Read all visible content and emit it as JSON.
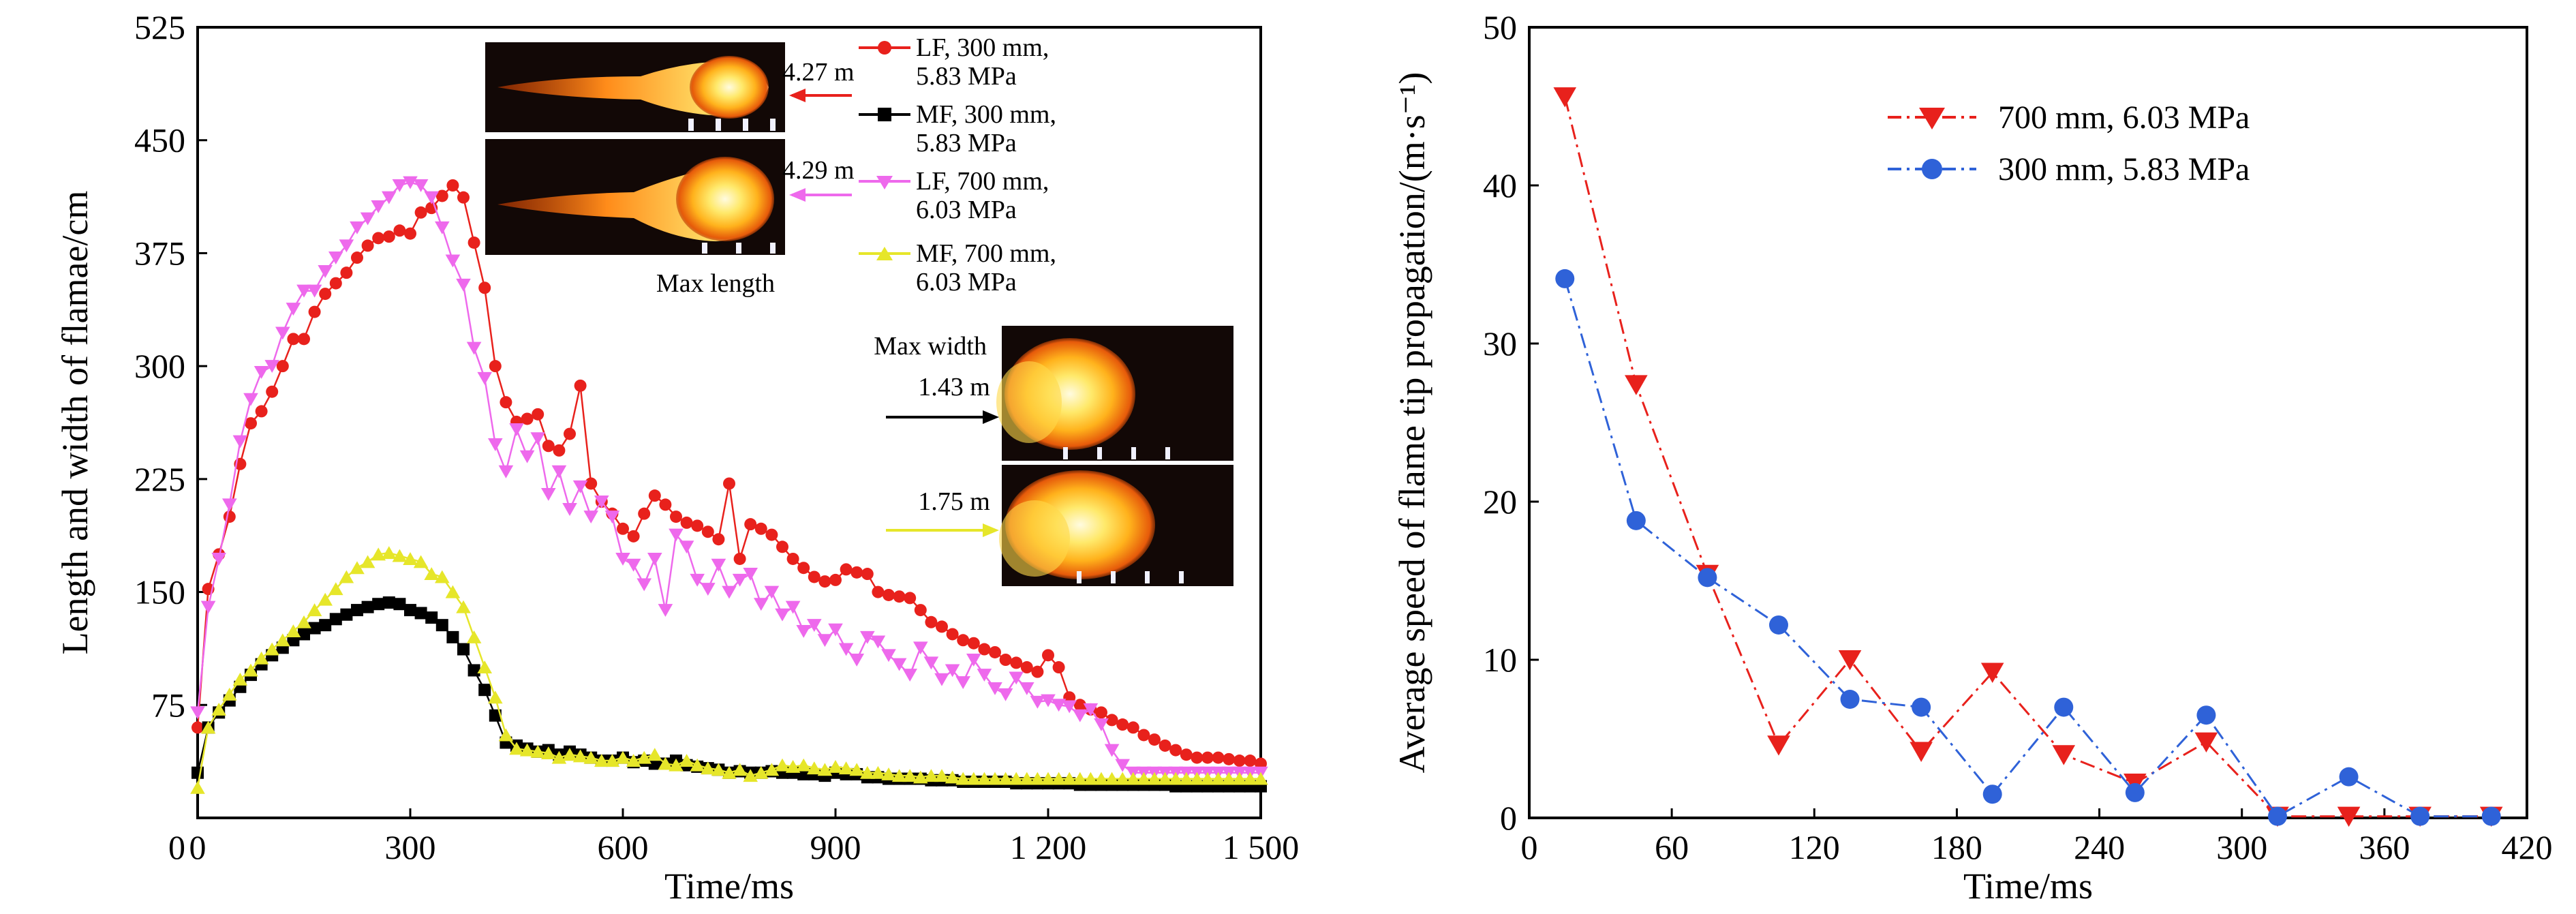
{
  "chart_data": [
    {
      "type": "line",
      "xlabel": "Time/ms",
      "ylabel": "Length and width of flamae/cm",
      "xlim": [
        0,
        1500
      ],
      "ylim": [
        0,
        525
      ],
      "xticks": [
        "0",
        "300",
        "600",
        "900",
        "1 200",
        "1 500"
      ],
      "yticks": [
        "75",
        "150",
        "225",
        "300",
        "375",
        "450",
        "525"
      ],
      "series": [
        {
          "name": "LF, 300 mm, 5.83 MPa",
          "color": "#e8211c",
          "marker": "circle",
          "x": [
            0,
            15,
            30,
            45,
            60,
            75,
            90,
            105,
            120,
            135,
            150,
            165,
            180,
            195,
            210,
            225,
            240,
            255,
            270,
            285,
            300,
            315,
            330,
            345,
            360,
            375,
            390,
            405,
            420,
            435,
            450,
            465,
            480,
            495,
            510,
            525,
            540,
            555,
            570,
            585,
            600,
            615,
            630,
            645,
            660,
            675,
            690,
            705,
            720,
            735,
            750,
            765,
            780,
            795,
            810,
            825,
            840,
            855,
            870,
            885,
            900,
            915,
            930,
            945,
            960,
            975,
            990,
            1005,
            1020,
            1035,
            1050,
            1065,
            1080,
            1095,
            1110,
            1125,
            1140,
            1155,
            1170,
            1185,
            1200,
            1215,
            1230,
            1245,
            1260,
            1275,
            1290,
            1305,
            1320,
            1335,
            1350,
            1365,
            1380,
            1395,
            1410,
            1425,
            1440,
            1455,
            1470,
            1485,
            1500
          ],
          "y": [
            60,
            152,
            175,
            200,
            235,
            262,
            270,
            283,
            300,
            318,
            318,
            336,
            348,
            355,
            362,
            372,
            380,
            385,
            386,
            390,
            388,
            402,
            405,
            413,
            420,
            412,
            382,
            352,
            300,
            276,
            263,
            265,
            268,
            247,
            244,
            255,
            287,
            222,
            210,
            202,
            192,
            187,
            202,
            214,
            208,
            200,
            196,
            194,
            190,
            185,
            222,
            172,
            195,
            192,
            188,
            180,
            172,
            166,
            160,
            157,
            158,
            165,
            163,
            162,
            150,
            148,
            147,
            146,
            138,
            130,
            127,
            122,
            118,
            116,
            112,
            110,
            105,
            103,
            100,
            97,
            108,
            100,
            80,
            75,
            72,
            70,
            65,
            62,
            60,
            55,
            52,
            48,
            45,
            42,
            40,
            40,
            40,
            39,
            38,
            38,
            36
          ]
        },
        {
          "name": "MF, 300 mm, 5.83 MPa",
          "color": "#000000",
          "marker": "square",
          "x": [
            0,
            15,
            30,
            45,
            60,
            75,
            90,
            105,
            120,
            135,
            150,
            165,
            180,
            195,
            210,
            225,
            240,
            255,
            270,
            285,
            300,
            315,
            330,
            345,
            360,
            375,
            390,
            405,
            420,
            435,
            450,
            465,
            480,
            495,
            510,
            525,
            540,
            555,
            570,
            585,
            600,
            615,
            630,
            645,
            660,
            675,
            690,
            705,
            720,
            735,
            750,
            765,
            780,
            795,
            810,
            825,
            840,
            855,
            870,
            885,
            900,
            915,
            930,
            945,
            960,
            975,
            990,
            1005,
            1020,
            1035,
            1050,
            1065,
            1080,
            1095,
            1110,
            1125,
            1140,
            1155,
            1170,
            1185,
            1200,
            1215,
            1230,
            1245,
            1260,
            1275,
            1290,
            1305,
            1320,
            1335,
            1350,
            1365,
            1380,
            1395,
            1410,
            1425,
            1440,
            1455,
            1470,
            1485,
            1500
          ],
          "y": [
            30,
            60,
            70,
            78,
            87,
            95,
            102,
            108,
            113,
            118,
            122,
            126,
            128,
            132,
            135,
            138,
            140,
            142,
            143,
            142,
            138,
            136,
            133,
            128,
            120,
            112,
            98,
            85,
            68,
            50,
            48,
            46,
            44,
            45,
            42,
            44,
            42,
            40,
            38,
            38,
            40,
            37,
            38,
            36,
            36,
            38,
            35,
            34,
            33,
            32,
            30,
            31,
            30,
            30,
            31,
            30,
            30,
            29,
            29,
            28,
            30,
            29,
            29,
            27,
            27,
            26,
            26,
            26,
            26,
            25,
            25,
            25,
            24,
            24,
            24,
            24,
            24,
            23,
            23,
            23,
            23,
            23,
            23,
            22,
            22,
            22,
            22,
            22,
            22,
            22,
            22,
            22,
            21,
            21,
            21,
            21,
            21,
            21,
            21,
            21,
            21
          ]
        },
        {
          "name": "LF, 700 mm, 6.03 MPa",
          "color": "#ee69ec",
          "marker": "triangle-down",
          "x": [
            0,
            15,
            30,
            45,
            60,
            75,
            90,
            105,
            120,
            135,
            150,
            165,
            180,
            195,
            210,
            225,
            240,
            255,
            270,
            285,
            300,
            315,
            330,
            345,
            360,
            375,
            390,
            405,
            420,
            435,
            450,
            465,
            480,
            495,
            510,
            525,
            540,
            555,
            570,
            585,
            600,
            615,
            630,
            645,
            660,
            675,
            690,
            705,
            720,
            735,
            750,
            765,
            780,
            795,
            810,
            825,
            840,
            855,
            870,
            885,
            900,
            915,
            930,
            945,
            960,
            975,
            990,
            1005,
            1020,
            1035,
            1050,
            1065,
            1080,
            1095,
            1110,
            1125,
            1140,
            1155,
            1170,
            1185,
            1200,
            1215,
            1230,
            1245,
            1260,
            1275,
            1290,
            1305,
            1320,
            1335,
            1350,
            1365,
            1380,
            1395,
            1410,
            1425,
            1440,
            1455,
            1470,
            1485,
            1500
          ],
          "y": [
            70,
            140,
            172,
            208,
            250,
            278,
            296,
            300,
            322,
            338,
            350,
            350,
            363,
            372,
            380,
            392,
            398,
            406,
            412,
            420,
            422,
            420,
            412,
            392,
            370,
            354,
            312,
            292,
            248,
            230,
            258,
            240,
            252,
            215,
            230,
            205,
            220,
            200,
            210,
            200,
            172,
            168,
            155,
            172,
            138,
            188,
            180,
            158,
            152,
            168,
            150,
            158,
            162,
            142,
            150,
            135,
            140,
            124,
            128,
            118,
            125,
            112,
            105,
            120,
            117,
            108,
            102,
            95,
            113,
            103,
            92,
            98,
            90,
            105,
            95,
            86,
            82,
            93,
            86,
            77,
            78,
            75,
            74,
            68,
            72,
            62,
            45,
            35,
            30,
            30,
            30,
            30,
            30,
            30,
            30,
            30,
            30,
            30,
            30,
            30,
            30
          ]
        },
        {
          "name": "MF, 700 mm, 6.03 MPa",
          "color": "#e6e62a",
          "marker": "triangle-up",
          "x": [
            0,
            15,
            30,
            45,
            60,
            75,
            90,
            105,
            120,
            135,
            150,
            165,
            180,
            195,
            210,
            225,
            240,
            255,
            270,
            285,
            300,
            315,
            330,
            345,
            360,
            375,
            390,
            405,
            420,
            435,
            450,
            465,
            480,
            495,
            510,
            525,
            540,
            555,
            570,
            585,
            600,
            615,
            630,
            645,
            660,
            675,
            690,
            705,
            720,
            735,
            750,
            765,
            780,
            795,
            810,
            825,
            840,
            855,
            870,
            885,
            900,
            915,
            930,
            945,
            960,
            975,
            990,
            1005,
            1020,
            1035,
            1050,
            1065,
            1080,
            1095,
            1110,
            1125,
            1140,
            1155,
            1170,
            1185,
            1200,
            1215,
            1230,
            1245,
            1260,
            1275,
            1290,
            1305,
            1320,
            1335,
            1350,
            1365,
            1380,
            1395,
            1410,
            1425,
            1440,
            1455,
            1470,
            1485,
            1500
          ],
          "y": [
            20,
            60,
            72,
            82,
            92,
            98,
            106,
            112,
            118,
            124,
            130,
            138,
            145,
            152,
            160,
            166,
            170,
            175,
            176,
            174,
            172,
            170,
            162,
            160,
            150,
            140,
            120,
            100,
            80,
            55,
            46,
            45,
            44,
            43,
            40,
            42,
            41,
            40,
            38,
            38,
            40,
            38,
            40,
            42,
            36,
            35,
            38,
            35,
            33,
            32,
            30,
            32,
            28,
            30,
            32,
            35,
            34,
            35,
            33,
            32,
            34,
            33,
            32,
            30,
            30,
            29,
            28,
            28,
            27,
            28,
            28,
            27,
            26,
            26,
            26,
            26,
            26,
            26,
            26,
            26,
            26,
            26,
            26,
            26,
            26,
            26,
            26,
            26,
            26,
            26,
            26,
            26,
            26,
            26,
            26,
            26,
            26,
            26,
            26,
            26,
            26
          ]
        }
      ],
      "legend_placement": "top-right",
      "annotations": {
        "top_photo_1": "4.27 m",
        "top_photo_2": "4.29 m",
        "max_length": "Max length",
        "max_width": "Max width",
        "width_1": "1.43 m",
        "width_2": "1.75 m"
      }
    },
    {
      "type": "line",
      "xlabel": "Time/ms",
      "ylabel": "Average speed of flame tip propagation/(m·s⁻¹)",
      "xlim": [
        0,
        420
      ],
      "ylim": [
        0,
        50
      ],
      "xticks": [
        "0",
        "60",
        "120",
        "180",
        "240",
        "300",
        "360",
        "420"
      ],
      "yticks": [
        "0",
        "10",
        "20",
        "30",
        "40",
        "50"
      ],
      "series": [
        {
          "name": "700 mm, 6.03 MPa",
          "color": "#e8211c",
          "marker": "triangle-down",
          "x": [
            15,
            45,
            75,
            105,
            135,
            165,
            195,
            225,
            255,
            285,
            315,
            345,
            375,
            405
          ],
          "y": [
            45.6,
            27.4,
            15.4,
            4.6,
            10.0,
            4.2,
            9.2,
            4.0,
            2.2,
            4.8,
            0.1,
            0.1,
            0.1,
            0.1
          ]
        },
        {
          "name": "300 mm, 5.83 MPa",
          "color": "#2f62d8",
          "marker": "circle",
          "x": [
            15,
            45,
            75,
            105,
            135,
            165,
            195,
            225,
            255,
            285,
            315,
            345,
            375,
            405
          ],
          "y": [
            34.1,
            18.8,
            15.2,
            12.2,
            7.5,
            7.0,
            1.5,
            7.0,
            1.6,
            6.5,
            0.1,
            2.6,
            0.1,
            0.1
          ]
        }
      ],
      "legend_placement": "top-right"
    }
  ]
}
